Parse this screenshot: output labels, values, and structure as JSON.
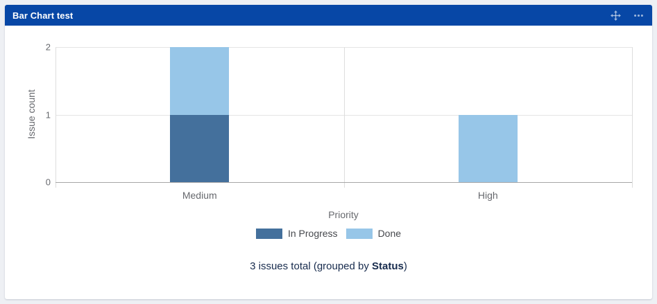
{
  "gadget": {
    "title": "Bar Chart test",
    "header_color": "#0747A6",
    "icons": {
      "move": "move-icon",
      "more": "more-options-icon"
    }
  },
  "chart_data": {
    "type": "bar",
    "stacked": true,
    "categories": [
      "Medium",
      "High"
    ],
    "series": [
      {
        "name": "In Progress",
        "color": "#44709C",
        "values": [
          1,
          0
        ]
      },
      {
        "name": "Done",
        "color": "#97C6E8",
        "values": [
          1,
          1
        ]
      }
    ],
    "xlabel": "Priority",
    "ylabel": "Issue count",
    "ylim": [
      0,
      2
    ],
    "yticks": [
      0,
      1,
      2
    ],
    "grid": true,
    "legend_position": "bottom"
  },
  "footer": {
    "text_prefix": "3 issues total (grouped by ",
    "group_field": "Status",
    "text_suffix": ")"
  }
}
